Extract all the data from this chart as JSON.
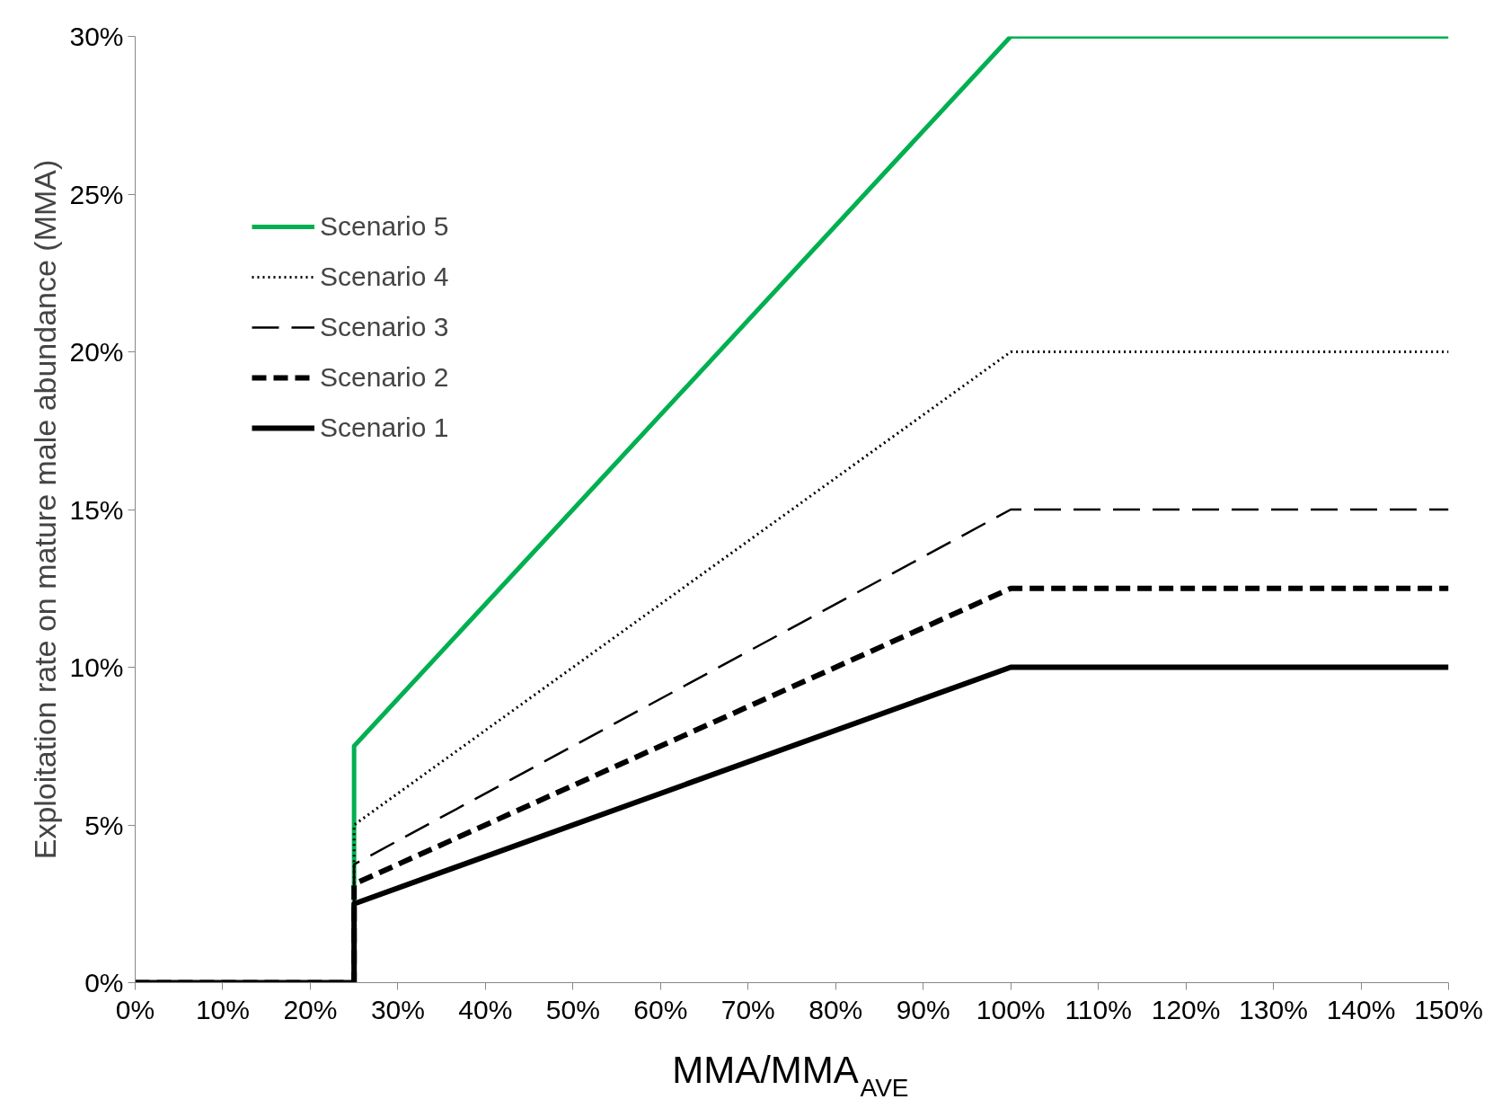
{
  "chart_data": {
    "type": "line",
    "xlabel": "MMA/MMA$_{AVE}$",
    "ylabel": "Exploitation rate on mature male abundance (MMA)",
    "x": [
      0,
      25,
      25,
      100,
      150
    ],
    "series": [
      {
        "name": "Scenario 5",
        "color": "#00b050",
        "line_style": "solid",
        "values": [
          0,
          0,
          7.5,
          30,
          30
        ]
      },
      {
        "name": "Scenario 4",
        "color": "#000000",
        "line_style": "dotted",
        "values": [
          0,
          0,
          5,
          20,
          20
        ]
      },
      {
        "name": "Scenario 3",
        "color": "#000000",
        "line_style": "dashed",
        "values": [
          0,
          0,
          3.75,
          15,
          15
        ]
      },
      {
        "name": "Scenario 2",
        "color": "#000000",
        "line_style": "dashed",
        "values": [
          0,
          0,
          3.125,
          12.5,
          12.5
        ]
      },
      {
        "name": "Scenario 1",
        "color": "#000000",
        "line_style": "solid",
        "values": [
          0,
          0,
          2.5,
          10,
          10
        ]
      }
    ],
    "xlim": [
      0,
      150
    ],
    "xticks": [
      {
        "value": 0,
        "label": "0%"
      },
      {
        "value": 10,
        "label": "10%"
      },
      {
        "value": 20,
        "label": "20%"
      },
      {
        "value": 30,
        "label": "30%"
      },
      {
        "value": 40,
        "label": "40%"
      },
      {
        "value": 50,
        "label": "50%"
      },
      {
        "value": 60,
        "label": "60%"
      },
      {
        "value": 70,
        "label": "70%"
      },
      {
        "value": 80,
        "label": "80%"
      },
      {
        "value": 90,
        "label": "90%"
      },
      {
        "value": 100,
        "label": "100%"
      },
      {
        "value": 110,
        "label": "110%"
      },
      {
        "value": 120,
        "label": "120%"
      },
      {
        "value": 130,
        "label": "130%"
      },
      {
        "value": 140,
        "label": "140%"
      },
      {
        "value": 150,
        "label": "150%"
      }
    ],
    "ylim": [
      0,
      30
    ],
    "yticks": [
      {
        "value": 0,
        "label": "0%"
      },
      {
        "value": 5,
        "label": "5%"
      },
      {
        "value": 10,
        "label": "10%"
      },
      {
        "value": 15,
        "label": "15%"
      },
      {
        "value": 20,
        "label": "20%"
      },
      {
        "value": 25,
        "label": "25%"
      },
      {
        "value": 30,
        "label": "30%"
      }
    ],
    "grid": false,
    "legend": "top left",
    "marker": "none"
  }
}
